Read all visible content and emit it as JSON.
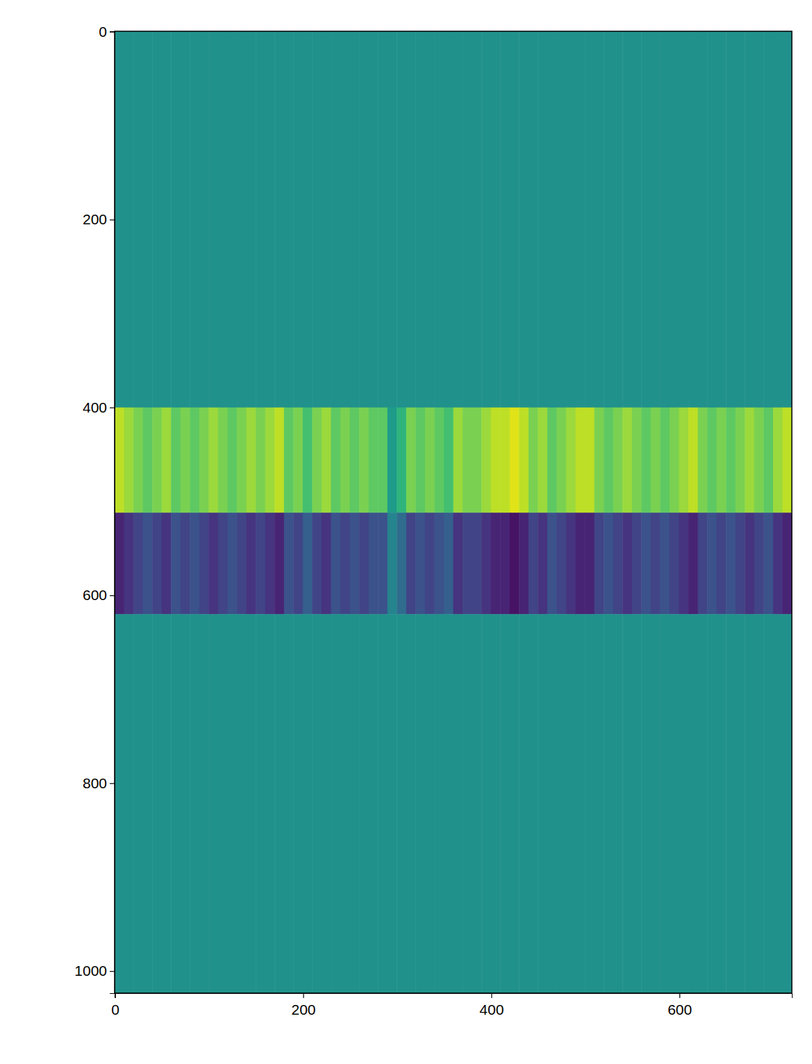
{
  "chart_data": {
    "type": "heatmap",
    "color": "viridis",
    "xlim": [
      -0.5,
      719.5
    ],
    "ylim": [
      1023.5,
      -0.5
    ],
    "xticks": [
      0,
      200,
      400,
      600
    ],
    "yticks": [
      0,
      200,
      400,
      600,
      800,
      1000
    ],
    "color_range": [
      -1,
      1
    ],
    "x_edges": [
      -0.5,
      9.5,
      19.5,
      29.5,
      39.5,
      49.5,
      59.5,
      69.5,
      79.5,
      89.5,
      99.5,
      109.5,
      119.5,
      129.5,
      139.5,
      149.5,
      159.5,
      169.5,
      179.5,
      189.5,
      199.5,
      209.5,
      219.5,
      229.5,
      239.5,
      249.5,
      259.5,
      269.5,
      279.5,
      289.5,
      299.5,
      309.5,
      319.5,
      329.5,
      339.5,
      349.5,
      359.5,
      369.5,
      379.5,
      389.5,
      399.5,
      409.5,
      419.5,
      429.5,
      439.5,
      449.5,
      459.5,
      469.5,
      479.5,
      489.5,
      499.5,
      509.5,
      519.5,
      529.5,
      539.5,
      549.5,
      559.5,
      569.5,
      579.5,
      589.5,
      599.5,
      609.5,
      619.5,
      629.5,
      639.5,
      649.5,
      659.5,
      669.5,
      679.5,
      689.5,
      699.5,
      709.5,
      719.5
    ],
    "y_edges": [
      -0.5,
      400,
      512,
      620,
      1023.5
    ],
    "cells": [
      [
        0,
        0,
        0,
        0,
        0,
        0,
        0,
        0,
        0,
        0,
        0,
        0,
        0,
        0,
        0,
        0,
        0,
        0,
        0,
        0,
        0,
        0,
        0,
        0,
        0,
        0,
        0,
        0,
        0,
        0,
        0,
        0,
        0,
        0,
        0,
        0,
        0,
        0,
        0,
        0,
        0,
        0,
        0,
        0,
        0,
        0,
        0,
        0,
        0,
        0,
        0,
        0,
        0,
        0,
        0,
        0,
        0,
        0,
        0,
        0,
        0,
        0,
        0,
        0,
        0,
        0,
        0,
        0,
        0,
        0,
        0,
        0
      ],
      [
        0.8,
        0.7,
        0.6,
        0.5,
        0.6,
        0.7,
        0.5,
        0.6,
        0.5,
        0.6,
        0.7,
        0.6,
        0.5,
        0.6,
        0.7,
        0.6,
        0.7,
        0.8,
        0.5,
        0.6,
        0.4,
        0.6,
        0.7,
        0.5,
        0.6,
        0.5,
        0.6,
        0.5,
        0.5,
        0.1,
        0.3,
        0.6,
        0.5,
        0.6,
        0.5,
        0.4,
        0.7,
        0.6,
        0.6,
        0.7,
        0.8,
        0.8,
        0.9,
        0.8,
        0.6,
        0.7,
        0.5,
        0.6,
        0.7,
        0.8,
        0.8,
        0.6,
        0.5,
        0.6,
        0.7,
        0.6,
        0.5,
        0.6,
        0.5,
        0.6,
        0.7,
        0.8,
        0.6,
        0.5,
        0.6,
        0.5,
        0.6,
        0.7,
        0.6,
        0.5,
        0.7,
        0.8
      ],
      [
        -0.8,
        -0.7,
        -0.6,
        -0.5,
        -0.6,
        -0.7,
        -0.5,
        -0.6,
        -0.5,
        -0.6,
        -0.7,
        -0.6,
        -0.5,
        -0.6,
        -0.7,
        -0.6,
        -0.7,
        -0.8,
        -0.5,
        -0.6,
        -0.4,
        -0.6,
        -0.7,
        -0.5,
        -0.6,
        -0.5,
        -0.6,
        -0.5,
        -0.5,
        -0.1,
        -0.3,
        -0.6,
        -0.5,
        -0.6,
        -0.5,
        -0.4,
        -0.7,
        -0.6,
        -0.6,
        -0.7,
        -0.8,
        -0.8,
        -0.9,
        -0.8,
        -0.6,
        -0.7,
        -0.5,
        -0.6,
        -0.7,
        -0.8,
        -0.8,
        -0.6,
        -0.5,
        -0.6,
        -0.7,
        -0.6,
        -0.5,
        -0.6,
        -0.5,
        -0.6,
        -0.7,
        -0.8,
        -0.6,
        -0.5,
        -0.6,
        -0.5,
        -0.6,
        -0.7,
        -0.6,
        -0.5,
        -0.7,
        -0.8
      ],
      [
        0,
        0,
        0,
        0,
        0,
        0,
        0,
        0,
        0,
        0,
        0,
        0,
        0,
        0,
        0,
        0,
        0,
        0,
        0,
        0,
        0,
        0,
        0,
        0,
        0,
        0,
        0,
        0,
        0,
        0,
        0,
        0,
        0,
        0,
        0,
        0,
        0,
        0,
        0,
        0,
        0,
        0,
        0,
        0,
        0,
        0,
        0,
        0,
        0,
        0,
        0,
        0,
        0,
        0,
        0,
        0,
        0,
        0,
        0,
        0,
        0,
        0,
        0,
        0,
        0,
        0,
        0,
        0,
        0,
        0,
        0,
        0
      ]
    ]
  }
}
